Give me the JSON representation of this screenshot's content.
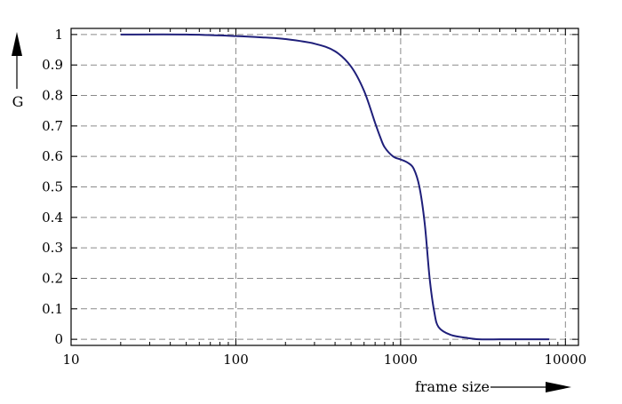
{
  "chart_data": {
    "type": "line",
    "xscale": "log",
    "xlim": [
      10,
      12000
    ],
    "ylim": [
      -0.02,
      1.02
    ],
    "xticks": [
      10,
      100,
      1000,
      10000
    ],
    "xtick_labels": [
      "10",
      "100",
      "1000",
      "10000"
    ],
    "yticks": [
      0,
      0.1,
      0.2,
      0.3,
      0.4,
      0.5,
      0.6,
      0.7,
      0.8,
      0.9,
      1
    ],
    "ytick_labels": [
      "0",
      "0.1",
      "0.2",
      "0.3",
      "0.4",
      "0.5",
      "0.6",
      "0.7",
      "0.8",
      "0.9",
      "1"
    ],
    "xlabel": "frame size",
    "ylabel": "G",
    "grid": "dashed",
    "series": [
      {
        "color": "#1f1f7a",
        "x": [
          20,
          50,
          100,
          150,
          200,
          300,
          400,
          500,
          600,
          700,
          750,
          800,
          900,
          1000,
          1100,
          1200,
          1300,
          1400,
          1500,
          1600,
          1700,
          2000,
          2500,
          3000,
          4000,
          5000,
          6000,
          7000,
          8000
        ],
        "y": [
          1.0,
          1.0,
          0.995,
          0.99,
          0.985,
          0.97,
          0.945,
          0.895,
          0.815,
          0.71,
          0.665,
          0.63,
          0.6,
          0.59,
          0.58,
          0.56,
          0.5,
          0.38,
          0.2,
          0.09,
          0.04,
          0.015,
          0.005,
          0.0,
          0.0,
          0.0,
          0.0,
          0.0,
          0.0
        ]
      }
    ]
  }
}
